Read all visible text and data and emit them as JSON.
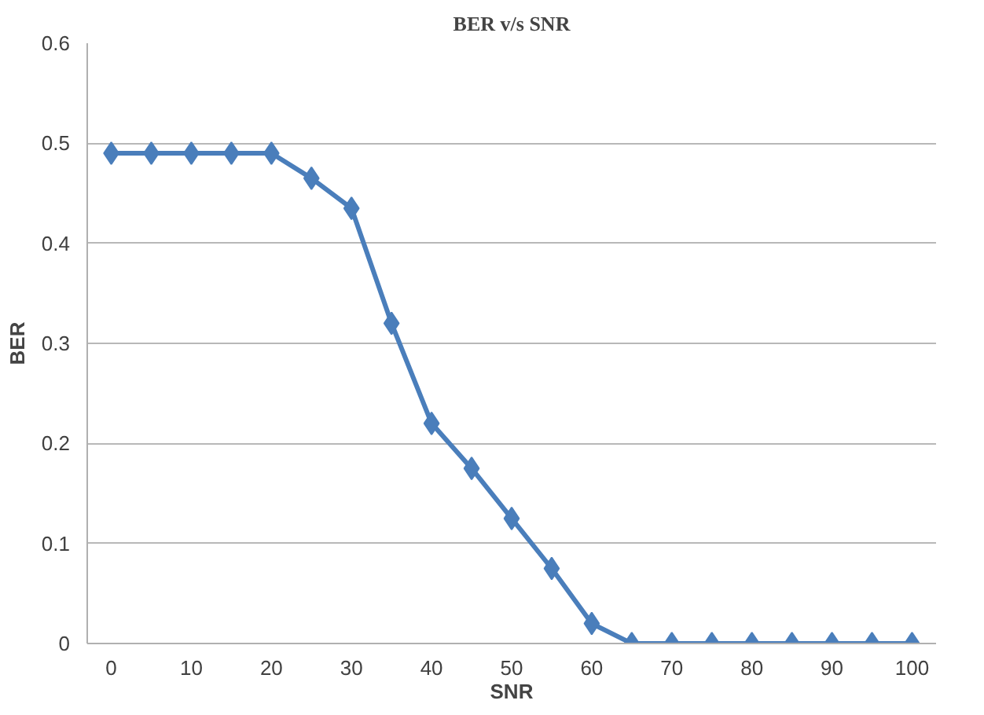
{
  "chart_data": {
    "type": "line",
    "title": "BER v/s SNR",
    "xlabel": "SNR",
    "ylabel": "BER",
    "x": [
      0,
      5,
      10,
      15,
      20,
      25,
      30,
      35,
      40,
      45,
      50,
      55,
      60,
      65,
      70,
      75,
      80,
      85,
      90,
      95,
      100
    ],
    "series": [
      {
        "color": "#4a7ebb",
        "values": [
          0.49,
          0.49,
          0.49,
          0.49,
          0.49,
          0.465,
          0.435,
          0.32,
          0.22,
          0.175,
          0.125,
          0.075,
          0.02,
          0,
          0,
          0,
          0,
          0,
          0,
          0,
          0
        ]
      }
    ],
    "xlim": [
      -3,
      103
    ],
    "xticks": [
      0,
      10,
      20,
      30,
      40,
      50,
      60,
      70,
      80,
      90,
      100
    ],
    "ylim": [
      0,
      0.6
    ],
    "yticks": [
      0,
      0.1,
      0.2,
      0.3,
      0.4,
      0.5,
      0.6
    ],
    "grid": "y",
    "marker": "diamond",
    "line_style": "solid"
  }
}
